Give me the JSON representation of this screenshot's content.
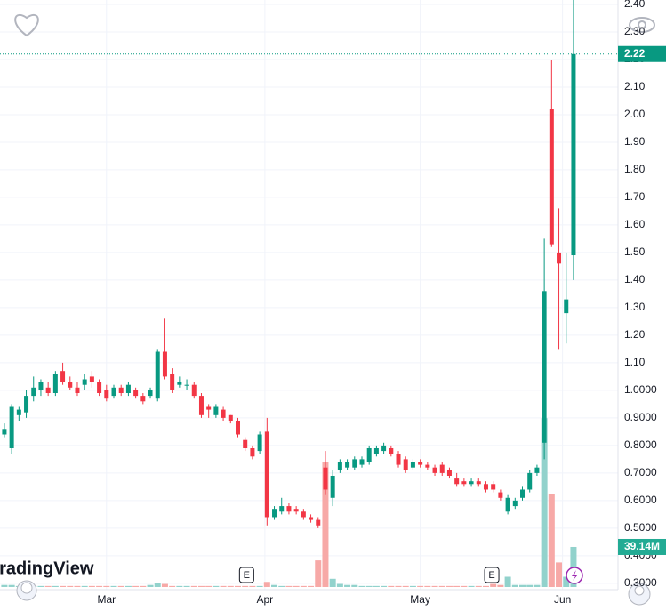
{
  "chart_data": {
    "type": "candlestick",
    "up_color": "#089981",
    "down_color": "#f23645",
    "volume_up_color": "#92d2cc",
    "volume_down_color": "#f7a9a7",
    "open": [
      0.84,
      0.79,
      0.91,
      0.92,
      0.98,
      1.0,
      1.01,
      0.99,
      1.07,
      1.03,
      1.01,
      1.02,
      1.05,
      1.03,
      1.0,
      0.98,
      1.01,
      0.99,
      1.0,
      0.98,
      0.98,
      0.97,
      1.14,
      1.06,
      1.02,
      1.02,
      1.02,
      0.98,
      0.94,
      0.91,
      0.93,
      0.91,
      0.89,
      0.82,
      0.79,
      0.78,
      0.85,
      0.54,
      0.56,
      0.58,
      0.57,
      0.56,
      0.54,
      0.53,
      0.72,
      0.61,
      0.71,
      0.72,
      0.72,
      0.73,
      0.74,
      0.77,
      0.78,
      0.79,
      0.77,
      0.75,
      0.72,
      0.74,
      0.73,
      0.72,
      0.73,
      0.71,
      0.68,
      0.67,
      0.66,
      0.67,
      0.66,
      0.66,
      0.63,
      0.56,
      0.58,
      0.61,
      0.64,
      0.7,
      0.81,
      2.02,
      1.5,
      1.28,
      1.49
    ],
    "high": [
      0.88,
      0.95,
      0.94,
      1.0,
      1.05,
      1.04,
      1.03,
      1.07,
      1.1,
      1.05,
      1.03,
      1.06,
      1.07,
      1.04,
      1.02,
      1.02,
      1.02,
      1.03,
      1.01,
      0.99,
      1.01,
      1.15,
      1.26,
      1.08,
      1.05,
      1.04,
      1.03,
      0.99,
      0.95,
      0.95,
      0.94,
      0.91,
      0.9,
      0.83,
      0.8,
      0.85,
      0.9,
      0.58,
      0.61,
      0.59,
      0.58,
      0.57,
      0.55,
      0.54,
      0.78,
      0.71,
      0.75,
      0.75,
      0.76,
      0.76,
      0.8,
      0.8,
      0.81,
      0.8,
      0.78,
      0.76,
      0.75,
      0.75,
      0.74,
      0.73,
      0.74,
      0.72,
      0.7,
      0.68,
      0.68,
      0.68,
      0.67,
      0.67,
      0.64,
      0.62,
      0.61,
      0.65,
      0.71,
      0.73,
      1.55,
      2.2,
      1.66,
      1.5,
      2.42
    ],
    "low": [
      0.83,
      0.77,
      0.89,
      0.9,
      0.96,
      0.98,
      0.98,
      0.98,
      1.02,
      1.0,
      0.98,
      1.0,
      1.01,
      0.98,
      0.96,
      0.97,
      0.98,
      0.98,
      0.97,
      0.95,
      0.97,
      0.96,
      1.04,
      0.99,
      1.01,
      1.0,
      0.97,
      0.9,
      0.9,
      0.9,
      0.89,
      0.88,
      0.83,
      0.78,
      0.75,
      0.77,
      0.51,
      0.53,
      0.55,
      0.55,
      0.55,
      0.53,
      0.52,
      0.5,
      0.62,
      0.58,
      0.7,
      0.71,
      0.71,
      0.72,
      0.73,
      0.76,
      0.77,
      0.76,
      0.72,
      0.7,
      0.71,
      0.72,
      0.71,
      0.69,
      0.69,
      0.68,
      0.65,
      0.65,
      0.65,
      0.65,
      0.63,
      0.63,
      0.6,
      0.55,
      0.57,
      0.6,
      0.63,
      0.69,
      0.75,
      1.52,
      1.15,
      1.17,
      1.4
    ],
    "close": [
      0.86,
      0.94,
      0.93,
      0.98,
      1.01,
      1.03,
      0.99,
      1.06,
      1.03,
      1.01,
      0.99,
      1.04,
      1.03,
      0.99,
      0.97,
      1.01,
      0.99,
      1.02,
      0.98,
      0.96,
      1.0,
      1.14,
      1.05,
      1.0,
      1.03,
      1.02,
      0.98,
      0.91,
      0.93,
      0.94,
      0.9,
      0.89,
      0.84,
      0.79,
      0.76,
      0.84,
      0.54,
      0.57,
      0.58,
      0.56,
      0.56,
      0.54,
      0.53,
      0.51,
      0.64,
      0.69,
      0.74,
      0.74,
      0.75,
      0.75,
      0.79,
      0.79,
      0.8,
      0.77,
      0.73,
      0.71,
      0.74,
      0.73,
      0.72,
      0.7,
      0.7,
      0.69,
      0.66,
      0.66,
      0.67,
      0.66,
      0.64,
      0.64,
      0.61,
      0.61,
      0.6,
      0.64,
      0.7,
      0.72,
      1.36,
      1.53,
      1.46,
      1.33,
      2.22
    ],
    "volume": [
      2,
      2,
      1,
      1,
      1,
      1,
      1,
      1,
      1,
      1,
      1,
      1,
      1,
      1,
      1,
      1,
      1,
      1,
      1,
      1,
      2,
      4,
      3,
      1,
      1,
      1,
      1,
      1,
      1,
      1,
      1,
      1,
      1,
      1,
      1,
      1,
      5,
      2,
      1,
      1,
      1,
      1,
      1,
      26,
      122,
      8,
      3,
      2,
      2,
      1,
      1,
      1,
      1,
      1,
      1,
      1,
      1,
      1,
      1,
      1,
      1,
      1,
      1,
      1,
      1,
      1,
      1,
      3,
      2,
      10,
      2,
      2,
      2,
      2,
      165,
      91,
      24,
      10,
      39.14
    ],
    "last_volume_label": "39.14M",
    "xlim": [
      -0.6,
      84.1
    ],
    "xticks": [
      {
        "value": 14.0,
        "label": "Mar"
      },
      {
        "value": 35.7,
        "label": "Apr"
      },
      {
        "value": 57.0,
        "label": "May"
      },
      {
        "value": 76.5,
        "label": "Jun"
      }
    ],
    "ylim": [
      0.277,
      2.416
    ],
    "yticks": [
      {
        "value": 2.4,
        "label": "2.40"
      },
      {
        "value": 2.3,
        "label": "2.30"
      },
      {
        "value": 2.2,
        "label": "2.20"
      },
      {
        "value": 2.1,
        "label": "2.10"
      },
      {
        "value": 2.0,
        "label": "2.00"
      },
      {
        "value": 1.9,
        "label": "1.90"
      },
      {
        "value": 1.8,
        "label": "1.80"
      },
      {
        "value": 1.7,
        "label": "1.70"
      },
      {
        "value": 1.6,
        "label": "1.60"
      },
      {
        "value": 1.5,
        "label": "1.50"
      },
      {
        "value": 1.4,
        "label": "1.40"
      },
      {
        "value": 1.3,
        "label": "1.30"
      },
      {
        "value": 1.2,
        "label": "1.20"
      },
      {
        "value": 1.1,
        "label": "1.10"
      },
      {
        "value": 1.0,
        "label": "1.0000"
      },
      {
        "value": 0.9,
        "label": "0.9000"
      },
      {
        "value": 0.8,
        "label": "0.8000"
      },
      {
        "value": 0.7,
        "label": "0.7000"
      },
      {
        "value": 0.6,
        "label": "0.6000"
      },
      {
        "value": 0.5,
        "label": "0.5000"
      },
      {
        "value": 0.4,
        "label": "0.4000"
      },
      {
        "value": 0.3,
        "label": "0.3000"
      }
    ],
    "y2lim": [
      0,
      400
    ],
    "grid": true,
    "events": [
      {
        "x": 33.2,
        "label": "E"
      },
      {
        "x": 66.8,
        "label": "E"
      }
    ],
    "watermark": "TradingView"
  }
}
